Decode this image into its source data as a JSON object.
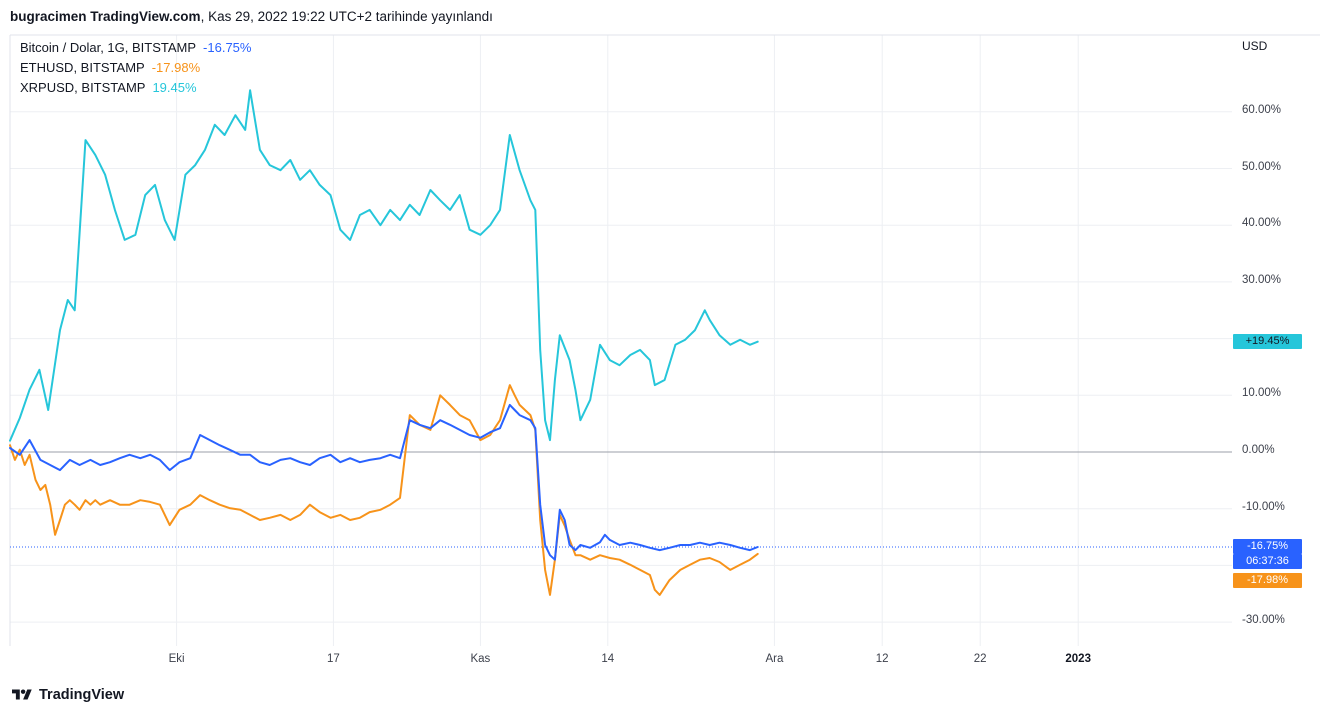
{
  "header": {
    "author_source": "bugracimen TradingView.com",
    "published_suffix": ", Kas 29, 2022 19:22 UTC+2 tarihinde yayınlandı"
  },
  "legend": [
    {
      "symbol": "Bitcoin / Dolar, 1G, BITSTAMP",
      "change": "-16.75%",
      "color": "#2962FF"
    },
    {
      "symbol": "ETHUSD, BITSTAMP",
      "change": "-17.98%",
      "color": "#F7931A"
    },
    {
      "symbol": "XRPUSD, BITSTAMP",
      "change": "19.45%",
      "color": "#26C6DA"
    }
  ],
  "axis": {
    "currency_label": "USD",
    "y_ticks": [
      {
        "pct": 60,
        "label": "60.00%"
      },
      {
        "pct": 50,
        "label": "50.00%"
      },
      {
        "pct": 40,
        "label": "40.00%"
      },
      {
        "pct": 30,
        "label": "30.00%"
      },
      {
        "pct": 10,
        "label": "10.00%"
      },
      {
        "pct": 0,
        "label": "0.00%"
      },
      {
        "pct": -10,
        "label": "-10.00%"
      },
      {
        "pct": -30,
        "label": "-30.00%"
      }
    ],
    "x_ticks": [
      {
        "day": 17,
        "label": "Eki"
      },
      {
        "day": 33,
        "label": "17"
      },
      {
        "day": 48,
        "label": "Kas"
      },
      {
        "day": 61,
        "label": "14"
      },
      {
        "day": 78,
        "label": "Ara"
      },
      {
        "day": 89,
        "label": "12"
      },
      {
        "day": 99,
        "label": "22"
      },
      {
        "day": 109,
        "label": "2023",
        "bold": true
      }
    ]
  },
  "price_labels": [
    {
      "name": "xrp-price-label",
      "text": "+19.45%",
      "bg": "#26C6DA",
      "fg": "#131722",
      "pct": 19.45
    },
    {
      "name": "btc-price-label",
      "text": "-16.75%",
      "bg": "#2962FF",
      "fg": "#FFFFFF",
      "pct": -16.75
    },
    {
      "name": "btc-countdown-label",
      "text": "06:37:36",
      "bg": "#2962FF",
      "fg": "#FFFFFF",
      "gap": 0
    },
    {
      "name": "eth-price-label",
      "text": "-17.98%",
      "bg": "#F7931A",
      "fg": "#FFFFFF",
      "gap": 4
    }
  ],
  "footer": {
    "brand": "TradingView"
  },
  "chart_data": {
    "type": "line",
    "y_unit": "percent_change",
    "ylim": [
      -35,
      68
    ],
    "x_unit": "day_index",
    "grid_color": "#edeff3",
    "zero_line_color": "#9b9fa8",
    "frame_color": "#e0e3eb",
    "y_gridlines": [
      60,
      50,
      40,
      30,
      20,
      10,
      0,
      -10,
      -20,
      -30
    ],
    "dotted_line_pct": -16.75,
    "series": [
      {
        "name": "Bitcoin / Dolar",
        "color": "#2962FF",
        "last_change": -16.75,
        "points": [
          [
            0,
            0.7
          ],
          [
            1,
            -0.5
          ],
          [
            2,
            2.1
          ],
          [
            3.1,
            -1.4
          ],
          [
            4.1,
            -2.3
          ],
          [
            5.1,
            -3.2
          ],
          [
            6.1,
            -1.4
          ],
          [
            7.1,
            -2.3
          ],
          [
            8.2,
            -1.4
          ],
          [
            9.2,
            -2.3
          ],
          [
            10.2,
            -1.8
          ],
          [
            11.2,
            -1.1
          ],
          [
            12.2,
            -0.5
          ],
          [
            13.3,
            -1.1
          ],
          [
            14.3,
            -0.5
          ],
          [
            15.3,
            -1.4
          ],
          [
            16.3,
            -3.2
          ],
          [
            17.3,
            -1.8
          ],
          [
            18.4,
            -1.1
          ],
          [
            19.4,
            3
          ],
          [
            20.4,
            2.1
          ],
          [
            21.4,
            1.2
          ],
          [
            22.4,
            0.4
          ],
          [
            23.5,
            -0.5
          ],
          [
            24.5,
            -0.5
          ],
          [
            25.5,
            -1.8
          ],
          [
            26.5,
            -2.3
          ],
          [
            27.6,
            -1.4
          ],
          [
            28.6,
            -1.1
          ],
          [
            29.6,
            -1.8
          ],
          [
            30.6,
            -2.3
          ],
          [
            31.6,
            -1.1
          ],
          [
            32.7,
            -0.5
          ],
          [
            33.7,
            -1.8
          ],
          [
            34.7,
            -1.1
          ],
          [
            35.7,
            -1.8
          ],
          [
            36.7,
            -1.4
          ],
          [
            37.8,
            -1.1
          ],
          [
            38.8,
            -0.5
          ],
          [
            39.8,
            -1.1
          ],
          [
            40.8,
            5.6
          ],
          [
            41.8,
            4.8
          ],
          [
            42.9,
            4.2
          ],
          [
            43.9,
            5.6
          ],
          [
            44.9,
            4.8
          ],
          [
            45.9,
            3.9
          ],
          [
            46.9,
            3
          ],
          [
            48,
            2.5
          ],
          [
            49,
            3.5
          ],
          [
            50,
            4.2
          ],
          [
            51,
            8.3
          ],
          [
            51.5,
            7.4
          ],
          [
            52,
            6.5
          ],
          [
            53.1,
            5.6
          ],
          [
            53.6,
            4.2
          ],
          [
            54.1,
            -9.3
          ],
          [
            54.6,
            -16.4
          ],
          [
            55.1,
            -18.2
          ],
          [
            55.6,
            -19
          ],
          [
            56.1,
            -10.2
          ],
          [
            56.6,
            -12
          ],
          [
            57.1,
            -16.4
          ],
          [
            57.7,
            -17.3
          ],
          [
            58.2,
            -16.4
          ],
          [
            59.2,
            -16.9
          ],
          [
            60.2,
            -15.9
          ],
          [
            60.7,
            -14.6
          ],
          [
            61.2,
            -15.5
          ],
          [
            62.2,
            -16.4
          ],
          [
            63.3,
            -16
          ],
          [
            64.3,
            -16.4
          ],
          [
            65.3,
            -16.9
          ],
          [
            66.3,
            -17.3
          ],
          [
            67.3,
            -16.9
          ],
          [
            68.4,
            -16.4
          ],
          [
            69.4,
            -16.4
          ],
          [
            70.4,
            -16
          ],
          [
            71.4,
            -16.4
          ],
          [
            72.4,
            -16
          ],
          [
            73.5,
            -16.4
          ],
          [
            74.5,
            -16.9
          ],
          [
            75.5,
            -17.3
          ],
          [
            76.3,
            -16.75
          ]
        ]
      },
      {
        "name": "ETHUSD",
        "color": "#F7931A",
        "last_change": -17.98,
        "points": [
          [
            0,
            1.2
          ],
          [
            0.5,
            -1.4
          ],
          [
            1,
            0.4
          ],
          [
            1.5,
            -2.3
          ],
          [
            2,
            -0.5
          ],
          [
            2.6,
            -4.9
          ],
          [
            3.1,
            -6.7
          ],
          [
            3.6,
            -5.8
          ],
          [
            4.1,
            -9.3
          ],
          [
            4.6,
            -14.6
          ],
          [
            5.1,
            -12
          ],
          [
            5.6,
            -9.3
          ],
          [
            6.1,
            -8.5
          ],
          [
            6.6,
            -9.3
          ],
          [
            7.1,
            -10.2
          ],
          [
            7.7,
            -8.5
          ],
          [
            8.2,
            -9.3
          ],
          [
            8.7,
            -8.5
          ],
          [
            9.2,
            -9.3
          ],
          [
            10.2,
            -8.5
          ],
          [
            11.2,
            -9.3
          ],
          [
            12.2,
            -9.3
          ],
          [
            13.3,
            -8.5
          ],
          [
            14.3,
            -8.8
          ],
          [
            15.3,
            -9.3
          ],
          [
            16.3,
            -12.9
          ],
          [
            17.3,
            -10.2
          ],
          [
            18.4,
            -9.3
          ],
          [
            19.4,
            -7.6
          ],
          [
            20.4,
            -8.5
          ],
          [
            21.4,
            -9.3
          ],
          [
            22.4,
            -9.9
          ],
          [
            23.5,
            -10.2
          ],
          [
            24.5,
            -11.1
          ],
          [
            25.5,
            -12
          ],
          [
            26.5,
            -11.6
          ],
          [
            27.6,
            -11.1
          ],
          [
            28.6,
            -12
          ],
          [
            29.6,
            -11.1
          ],
          [
            30.6,
            -9.3
          ],
          [
            31.6,
            -10.6
          ],
          [
            32.7,
            -11.6
          ],
          [
            33.7,
            -11.1
          ],
          [
            34.7,
            -12
          ],
          [
            35.7,
            -11.6
          ],
          [
            36.7,
            -10.6
          ],
          [
            37.8,
            -10.2
          ],
          [
            38.8,
            -9.3
          ],
          [
            39.8,
            -8.1
          ],
          [
            40.8,
            6.5
          ],
          [
            41.8,
            4.8
          ],
          [
            42.9,
            3.9
          ],
          [
            43.9,
            10
          ],
          [
            44.9,
            8.3
          ],
          [
            45.9,
            6.5
          ],
          [
            46.9,
            5.6
          ],
          [
            48,
            2.1
          ],
          [
            49,
            3
          ],
          [
            50,
            5.6
          ],
          [
            51,
            11.8
          ],
          [
            51.5,
            10
          ],
          [
            52,
            8.3
          ],
          [
            53.1,
            6.5
          ],
          [
            53.6,
            3.9
          ],
          [
            54.1,
            -12
          ],
          [
            54.6,
            -20.8
          ],
          [
            55.1,
            -25.2
          ],
          [
            55.6,
            -19
          ],
          [
            56.1,
            -11.1
          ],
          [
            56.6,
            -13
          ],
          [
            57.1,
            -15.5
          ],
          [
            57.7,
            -18.2
          ],
          [
            58.2,
            -18.2
          ],
          [
            59.2,
            -19
          ],
          [
            60.2,
            -18.2
          ],
          [
            61.2,
            -18.7
          ],
          [
            62.2,
            -19
          ],
          [
            63.3,
            -19.9
          ],
          [
            64.3,
            -20.8
          ],
          [
            65.3,
            -21.7
          ],
          [
            65.8,
            -24.3
          ],
          [
            66.3,
            -25.2
          ],
          [
            67.3,
            -22.6
          ],
          [
            68.4,
            -20.8
          ],
          [
            69.4,
            -19.9
          ],
          [
            70.4,
            -19
          ],
          [
            71.4,
            -18.7
          ],
          [
            72.4,
            -19.4
          ],
          [
            73.5,
            -20.8
          ],
          [
            74.5,
            -19.9
          ],
          [
            75.5,
            -19
          ],
          [
            76.3,
            -17.98
          ]
        ]
      },
      {
        "name": "XRPUSD",
        "color": "#26C6DA",
        "last_change": 19.45,
        "points": [
          [
            0,
            2
          ],
          [
            1,
            6
          ],
          [
            2,
            11
          ],
          [
            3,
            14.5
          ],
          [
            3.9,
            7.4
          ],
          [
            5.1,
            21.5
          ],
          [
            5.9,
            26.8
          ],
          [
            6.6,
            25
          ],
          [
            7.7,
            55
          ],
          [
            8.7,
            52.4
          ],
          [
            9.7,
            48.9
          ],
          [
            10.7,
            42.7
          ],
          [
            11.7,
            37.4
          ],
          [
            12.8,
            38.3
          ],
          [
            13.8,
            45.3
          ],
          [
            14.8,
            47.1
          ],
          [
            15.8,
            40.9
          ],
          [
            16.8,
            37.4
          ],
          [
            17.9,
            48.9
          ],
          [
            18.9,
            50.6
          ],
          [
            19.9,
            53.3
          ],
          [
            20.9,
            57.7
          ],
          [
            21.9,
            55.9
          ],
          [
            23,
            59.4
          ],
          [
            24,
            56.8
          ],
          [
            24.5,
            63.8
          ],
          [
            25.5,
            53.3
          ],
          [
            26.5,
            50.6
          ],
          [
            27.6,
            49.7
          ],
          [
            28.6,
            51.5
          ],
          [
            29.6,
            48
          ],
          [
            30.6,
            49.7
          ],
          [
            31.6,
            47.1
          ],
          [
            32.7,
            45.3
          ],
          [
            33.7,
            39.2
          ],
          [
            34.7,
            37.4
          ],
          [
            35.7,
            41.8
          ],
          [
            36.7,
            42.7
          ],
          [
            37.8,
            40
          ],
          [
            38.8,
            42.7
          ],
          [
            39.8,
            40.9
          ],
          [
            40.8,
            43.6
          ],
          [
            41.8,
            41.8
          ],
          [
            42.9,
            46.2
          ],
          [
            43.9,
            44.4
          ],
          [
            44.9,
            42.7
          ],
          [
            45.9,
            45.3
          ],
          [
            46.9,
            39.2
          ],
          [
            48,
            38.3
          ],
          [
            49,
            40
          ],
          [
            50,
            42.7
          ],
          [
            51,
            55.9
          ],
          [
            52,
            49.7
          ],
          [
            53.1,
            44.4
          ],
          [
            53.6,
            42.7
          ],
          [
            54.1,
            18
          ],
          [
            54.6,
            5.6
          ],
          [
            55.1,
            2.1
          ],
          [
            55.6,
            12.7
          ],
          [
            56.1,
            20.6
          ],
          [
            57.1,
            16.2
          ],
          [
            57.7,
            10.9
          ],
          [
            58.2,
            5.6
          ],
          [
            59.2,
            9.2
          ],
          [
            60.2,
            18.9
          ],
          [
            61.2,
            16.2
          ],
          [
            62.2,
            15.3
          ],
          [
            63.3,
            17.1
          ],
          [
            64.3,
            18
          ],
          [
            65.3,
            16.2
          ],
          [
            65.8,
            11.8
          ],
          [
            66.8,
            12.7
          ],
          [
            67.9,
            18.9
          ],
          [
            68.9,
            19.8
          ],
          [
            69.9,
            21.5
          ],
          [
            70.9,
            25
          ],
          [
            71.4,
            23.3
          ],
          [
            72.4,
            20.6
          ],
          [
            73.5,
            18.9
          ],
          [
            74.5,
            19.8
          ],
          [
            75.5,
            18.9
          ],
          [
            76.3,
            19.45
          ]
        ]
      }
    ]
  }
}
